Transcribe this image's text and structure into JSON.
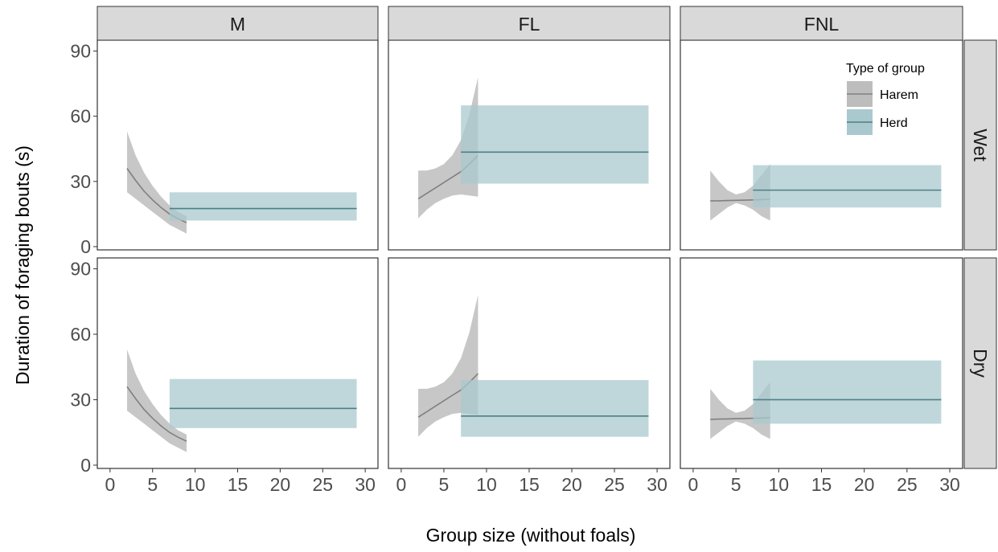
{
  "chart_data": {
    "type": "line",
    "title": "",
    "xlabel": "Group size (without foals)",
    "ylabel": "Duration of foraging bouts (s)",
    "xlim": [
      -1.5,
      31.5
    ],
    "ylim": [
      -1.5,
      95
    ],
    "x_ticks": [
      0,
      5,
      10,
      15,
      20,
      25,
      30
    ],
    "y_ticks": [
      0,
      30,
      60,
      90
    ],
    "grid": false,
    "legend": {
      "title": "Type of group",
      "placement": "top-right",
      "items": [
        {
          "label": "Harem",
          "color": "#808080",
          "fill": "#bdbdbd"
        },
        {
          "label": "Herd",
          "color": "#4e7f86",
          "fill": "#a9c9cf"
        }
      ]
    },
    "col_facets": [
      "M",
      "FL",
      "FNL"
    ],
    "row_facets": [
      "Wet",
      "Dry"
    ],
    "panels": [
      {
        "col": "M",
        "row": "Wet",
        "harem": {
          "x": [
            2,
            3,
            4,
            5,
            6,
            7,
            8,
            9
          ],
          "y": [
            36,
            30.5,
            25.5,
            21.5,
            18,
            15,
            12.8,
            11
          ],
          "lower": [
            25,
            22,
            19,
            16,
            13,
            10,
            8,
            6
          ],
          "upper": [
            53,
            42,
            34,
            28,
            23,
            19,
            16,
            14
          ]
        },
        "herd": {
          "x": [
            7,
            29
          ],
          "y": 17.5,
          "lower": 12,
          "upper": 25
        }
      },
      {
        "col": "FL",
        "row": "Wet",
        "harem": {
          "x": [
            2,
            3,
            4,
            5,
            6,
            7,
            8,
            9
          ],
          "y": [
            22,
            24.5,
            27,
            29.5,
            32,
            34.5,
            38,
            42
          ],
          "lower": [
            13,
            17,
            20,
            22,
            23.5,
            24,
            23.5,
            23
          ],
          "upper": [
            35,
            35,
            36,
            38,
            42,
            49,
            61,
            78
          ]
        },
        "herd": {
          "x": [
            7,
            29
          ],
          "y": 43.5,
          "lower": 29,
          "upper": 65
        }
      },
      {
        "col": "FNL",
        "row": "Wet",
        "harem": {
          "x": [
            2,
            3,
            4,
            5,
            6,
            7,
            8,
            9
          ],
          "y": [
            21,
            21.1,
            21.2,
            21.3,
            21.4,
            21.5,
            21.6,
            21.8
          ],
          "lower": [
            12,
            15,
            18,
            20,
            19,
            17,
            14,
            12
          ],
          "upper": [
            35,
            30,
            26,
            24,
            25,
            28,
            33,
            38
          ]
        },
        "herd": {
          "x": [
            7,
            29
          ],
          "y": 26,
          "lower": 18,
          "upper": 37.5
        }
      },
      {
        "col": "M",
        "row": "Dry",
        "harem": {
          "x": [
            2,
            3,
            4,
            5,
            6,
            7,
            8,
            9
          ],
          "y": [
            36,
            30.5,
            25.5,
            21.5,
            18,
            15,
            12.8,
            11
          ],
          "lower": [
            25,
            22,
            19,
            16,
            13,
            10,
            8,
            6
          ],
          "upper": [
            53,
            42,
            34,
            28,
            23,
            19,
            16,
            14
          ]
        },
        "herd": {
          "x": [
            7,
            29
          ],
          "y": 26,
          "lower": 17,
          "upper": 39.5
        }
      },
      {
        "col": "FL",
        "row": "Dry",
        "harem": {
          "x": [
            2,
            3,
            4,
            5,
            6,
            7,
            8,
            9
          ],
          "y": [
            22,
            24.5,
            27,
            29.5,
            32,
            34.5,
            38,
            42
          ],
          "lower": [
            13,
            17,
            20,
            22,
            23.5,
            24,
            23.5,
            23
          ],
          "upper": [
            35,
            35,
            36,
            38,
            42,
            49,
            61,
            78
          ]
        },
        "herd": {
          "x": [
            7,
            29
          ],
          "y": 22.5,
          "lower": 13,
          "upper": 39
        }
      },
      {
        "col": "FNL",
        "row": "Dry",
        "harem": {
          "x": [
            2,
            3,
            4,
            5,
            6,
            7,
            8,
            9
          ],
          "y": [
            21,
            21.1,
            21.2,
            21.3,
            21.4,
            21.5,
            21.6,
            21.8
          ],
          "lower": [
            12,
            15,
            18,
            20,
            19,
            17,
            14,
            12
          ],
          "upper": [
            35,
            30,
            26,
            24,
            25,
            28,
            33,
            38
          ]
        },
        "herd": {
          "x": [
            7,
            29
          ],
          "y": 30,
          "lower": 19,
          "upper": 48
        }
      }
    ]
  },
  "colors": {
    "harem_line": "#808080",
    "harem_fill": "#bdbdbd",
    "herd_line": "#4e7f86",
    "herd_fill": "#a9c9cf",
    "strip_fill": "#d9d9d9",
    "axis_text": "#4d4d4d",
    "panel_border": "#333333"
  }
}
